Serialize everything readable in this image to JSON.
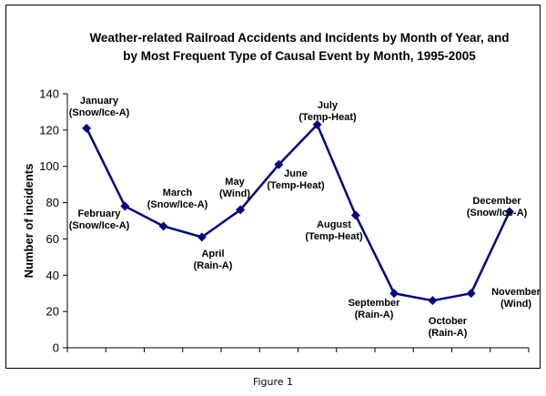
{
  "chart_data": {
    "type": "line",
    "title_lines": [
      "Weather-related Railroad Accidents and Incidents by Month of Year, and",
      "by Most Frequent Type of Causal Event by Month, 1995-2005"
    ],
    "ylabel": "Number of incidents",
    "xlabel": "",
    "ylim": [
      0,
      140
    ],
    "yticks": [
      0,
      20,
      40,
      60,
      80,
      100,
      120,
      140
    ],
    "grid": false,
    "legend": "none",
    "line_color": "#000080",
    "points": [
      {
        "month": "January",
        "value": 121,
        "labels": [
          "January",
          "(Snow/Ice-A)"
        ]
      },
      {
        "month": "February",
        "value": 78,
        "labels": [
          "February",
          "(Snow/Ice-A)"
        ]
      },
      {
        "month": "March",
        "value": 67,
        "labels": [
          "March",
          "(Snow/Ice-A)"
        ]
      },
      {
        "month": "April",
        "value": 61,
        "labels": [
          "April",
          "(Rain-A)"
        ]
      },
      {
        "month": "May",
        "value": 76,
        "labels": [
          "May",
          "(Wind)"
        ]
      },
      {
        "month": "June",
        "value": 101,
        "labels": [
          "June",
          "(Temp-Heat)"
        ]
      },
      {
        "month": "July",
        "value": 123,
        "labels": [
          "July",
          "(Temp-Heat)"
        ]
      },
      {
        "month": "August",
        "value": 73,
        "labels": [
          "August",
          "(Temp-Heat)"
        ]
      },
      {
        "month": "September",
        "value": 30,
        "labels": [
          "September",
          "(Rain-A)"
        ]
      },
      {
        "month": "October",
        "value": 26,
        "labels": [
          "October",
          "(Rain-A)"
        ]
      },
      {
        "month": "November",
        "value": 30,
        "labels": [
          "November",
          "(Wind)"
        ]
      },
      {
        "month": "December",
        "value": 75,
        "labels": [
          "December",
          "(Snow/Ice-A)"
        ]
      }
    ]
  },
  "caption": "Figure 1"
}
